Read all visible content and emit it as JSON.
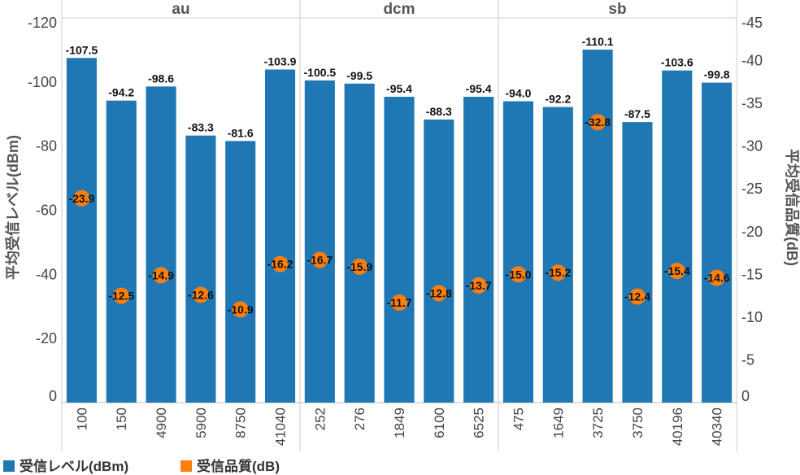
{
  "chart_data": {
    "type": "bar",
    "groups": [
      {
        "name": "au",
        "categories": [
          "100",
          "150",
          "4900",
          "5900",
          "8750",
          "41040"
        ]
      },
      {
        "name": "dcm",
        "categories": [
          "252",
          "276",
          "1849",
          "6100",
          "6525"
        ]
      },
      {
        "name": "sb",
        "categories": [
          "475",
          "1649",
          "3725",
          "3750",
          "40196",
          "40340"
        ]
      }
    ],
    "categories": [
      "100",
      "150",
      "4900",
      "5900",
      "8750",
      "41040",
      "252",
      "276",
      "1849",
      "6100",
      "6525",
      "475",
      "1649",
      "3725",
      "3750",
      "40196",
      "40340"
    ],
    "series": [
      {
        "name": "受信レベル(dBm)",
        "mark": "bar",
        "axis": "left",
        "color": "#1f77b4",
        "values": [
          -107.5,
          -94.2,
          -98.6,
          -83.3,
          -81.6,
          -103.9,
          -100.5,
          -99.5,
          -95.4,
          -88.3,
          -95.4,
          -94.0,
          -92.2,
          -110.1,
          -87.5,
          -103.6,
          -99.8
        ],
        "labels": [
          "-107.5",
          "-94.2",
          "-98.6",
          "-83.3",
          "-81.6",
          "-103.9",
          "-100.5",
          "-99.5",
          "-95.4",
          "-88.3",
          "-95.4",
          "-94.0",
          "-92.2",
          "-110.1",
          "-87.5",
          "-103.6",
          "-99.8"
        ]
      },
      {
        "name": "受信品質(dB)",
        "mark": "circle",
        "axis": "right",
        "color": "#ff7f0e",
        "values": [
          -23.9,
          -12.5,
          -14.9,
          -12.6,
          -10.9,
          -16.2,
          -16.7,
          -15.9,
          -11.7,
          -12.8,
          -13.7,
          -15.0,
          -15.2,
          -32.8,
          -12.4,
          -15.4,
          -14.6
        ],
        "labels": [
          "-23.9",
          "-12.5",
          "-14.9",
          "-12.6",
          "-10.9",
          "-16.2",
          "-16.7",
          "-15.9",
          "-11.7",
          "-12.8",
          "-13.7",
          "-15.0",
          "-15.2",
          "-32.8",
          "-12.4",
          "-15.4",
          "-14.6"
        ]
      }
    ],
    "y_left": {
      "label": "平均受信レベル(dBm)",
      "range": [
        0,
        -120
      ],
      "ticks": [
        0,
        -20,
        -40,
        -60,
        -80,
        -100,
        -120
      ],
      "tick_labels": [
        "0",
        "-20",
        "-40",
        "-60",
        "-80",
        "-100",
        "-120"
      ]
    },
    "y_right": {
      "label": "平均受信品質(dB)",
      "range": [
        0,
        -45
      ],
      "ticks": [
        0,
        -5,
        -10,
        -15,
        -20,
        -25,
        -30,
        -35,
        -40,
        -45
      ],
      "tick_labels": [
        "0",
        "-5",
        "-10",
        "-15",
        "-20",
        "-25",
        "-30",
        "-35",
        "-40",
        "-45"
      ]
    },
    "grid": false,
    "legend": {
      "placement": "bottom-left",
      "items": [
        {
          "label": "受信レベル(dBm)",
          "color": "#1f77b4"
        },
        {
          "label": "受信品質(dB)",
          "color": "#ff7f0e"
        }
      ]
    }
  }
}
